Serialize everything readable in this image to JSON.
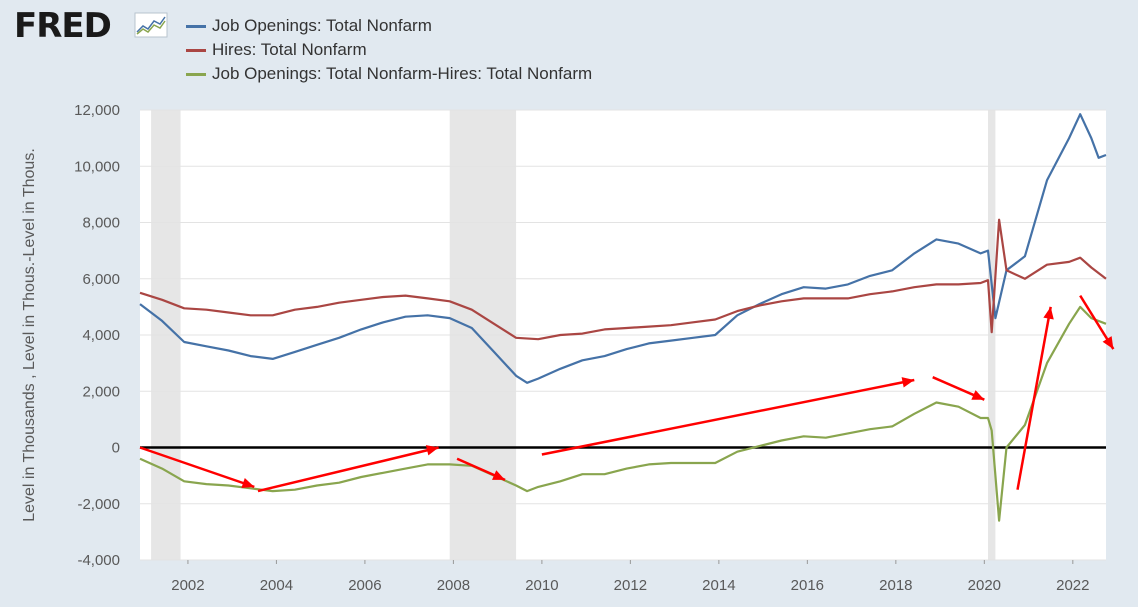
{
  "logo": {
    "text": "FRED",
    "icon": "fred-chart-icon"
  },
  "colors": {
    "background": "#e1e9f0",
    "plot_background": "#ffffff",
    "recession_shade": "#e6e6e6",
    "zero_line": "#000000",
    "annotation_arrows": "#ff0000"
  },
  "chart_data": {
    "type": "line",
    "title": "",
    "ylabel": "Level in Thousands , Level in Thous.-Level in Thous.",
    "xlabel": "",
    "x_ticks": [
      "2002",
      "2004",
      "2006",
      "2008",
      "2010",
      "2012",
      "2014",
      "2016",
      "2018",
      "2020",
      "2022"
    ],
    "y_ticks": [
      "12,000",
      "10,000",
      "8,000",
      "6,000",
      "4,000",
      "2,000",
      "0",
      "-2,000",
      "-4,000"
    ],
    "ylim": [
      -4000,
      12000
    ],
    "xlim": [
      "2000-12",
      "2022-10"
    ],
    "grid": true,
    "legend_position": "top-left",
    "recessions": [
      {
        "start": "2001-03",
        "end": "2001-11"
      },
      {
        "start": "2007-12",
        "end": "2009-06"
      },
      {
        "start": "2020-02",
        "end": "2020-04"
      }
    ],
    "series": [
      {
        "name": "Job Openings: Total Nonfarm",
        "color": "#4572a7",
        "points": [
          [
            "2000-12",
            5100
          ],
          [
            "2001-06",
            4500
          ],
          [
            "2001-12",
            3750
          ],
          [
            "2002-06",
            3600
          ],
          [
            "2002-12",
            3450
          ],
          [
            "2003-06",
            3250
          ],
          [
            "2003-12",
            3150
          ],
          [
            "2004-06",
            3400
          ],
          [
            "2004-12",
            3650
          ],
          [
            "2005-06",
            3900
          ],
          [
            "2005-12",
            4200
          ],
          [
            "2006-06",
            4450
          ],
          [
            "2006-12",
            4650
          ],
          [
            "2007-06",
            4700
          ],
          [
            "2007-12",
            4600
          ],
          [
            "2008-06",
            4250
          ],
          [
            "2008-12",
            3400
          ],
          [
            "2009-06",
            2550
          ],
          [
            "2009-09",
            2300
          ],
          [
            "2009-12",
            2450
          ],
          [
            "2010-06",
            2800
          ],
          [
            "2010-12",
            3100
          ],
          [
            "2011-06",
            3250
          ],
          [
            "2011-12",
            3500
          ],
          [
            "2012-06",
            3700
          ],
          [
            "2012-12",
            3800
          ],
          [
            "2013-06",
            3900
          ],
          [
            "2013-12",
            4000
          ],
          [
            "2014-06",
            4700
          ],
          [
            "2014-12",
            5100
          ],
          [
            "2015-06",
            5450
          ],
          [
            "2015-12",
            5700
          ],
          [
            "2016-06",
            5650
          ],
          [
            "2016-12",
            5800
          ],
          [
            "2017-06",
            6100
          ],
          [
            "2017-12",
            6300
          ],
          [
            "2018-06",
            6900
          ],
          [
            "2018-12",
            7400
          ],
          [
            "2019-06",
            7250
          ],
          [
            "2019-12",
            6900
          ],
          [
            "2020-02",
            7000
          ],
          [
            "2020-04",
            4600
          ],
          [
            "2020-07",
            6300
          ],
          [
            "2020-12",
            6800
          ],
          [
            "2021-06",
            9500
          ],
          [
            "2021-12",
            11000
          ],
          [
            "2022-03",
            11850
          ],
          [
            "2022-06",
            11000
          ],
          [
            "2022-08",
            10300
          ],
          [
            "2022-10",
            10400
          ]
        ]
      },
      {
        "name": "Hires: Total Nonfarm",
        "color": "#aa4643",
        "points": [
          [
            "2000-12",
            5500
          ],
          [
            "2001-06",
            5250
          ],
          [
            "2001-12",
            4950
          ],
          [
            "2002-06",
            4900
          ],
          [
            "2002-12",
            4800
          ],
          [
            "2003-06",
            4700
          ],
          [
            "2003-12",
            4700
          ],
          [
            "2004-06",
            4900
          ],
          [
            "2004-12",
            5000
          ],
          [
            "2005-06",
            5150
          ],
          [
            "2005-12",
            5250
          ],
          [
            "2006-06",
            5350
          ],
          [
            "2006-12",
            5400
          ],
          [
            "2007-06",
            5300
          ],
          [
            "2007-12",
            5200
          ],
          [
            "2008-06",
            4900
          ],
          [
            "2008-12",
            4400
          ],
          [
            "2009-06",
            3900
          ],
          [
            "2009-12",
            3850
          ],
          [
            "2010-06",
            4000
          ],
          [
            "2010-12",
            4050
          ],
          [
            "2011-06",
            4200
          ],
          [
            "2011-12",
            4250
          ],
          [
            "2012-06",
            4300
          ],
          [
            "2012-12",
            4350
          ],
          [
            "2013-06",
            4450
          ],
          [
            "2013-12",
            4550
          ],
          [
            "2014-06",
            4850
          ],
          [
            "2014-12",
            5050
          ],
          [
            "2015-06",
            5200
          ],
          [
            "2015-12",
            5300
          ],
          [
            "2016-06",
            5300
          ],
          [
            "2016-12",
            5300
          ],
          [
            "2017-06",
            5450
          ],
          [
            "2017-12",
            5550
          ],
          [
            "2018-06",
            5700
          ],
          [
            "2018-12",
            5800
          ],
          [
            "2019-06",
            5800
          ],
          [
            "2019-12",
            5850
          ],
          [
            "2020-02",
            5950
          ],
          [
            "2020-03",
            4100
          ],
          [
            "2020-05",
            8100
          ],
          [
            "2020-07",
            6300
          ],
          [
            "2020-12",
            6000
          ],
          [
            "2021-06",
            6500
          ],
          [
            "2021-12",
            6600
          ],
          [
            "2022-03",
            6750
          ],
          [
            "2022-06",
            6400
          ],
          [
            "2022-10",
            6000
          ]
        ]
      },
      {
        "name": "Job Openings: Total Nonfarm-Hires: Total Nonfarm",
        "color": "#89a54e",
        "points": [
          [
            "2000-12",
            -400
          ],
          [
            "2001-06",
            -750
          ],
          [
            "2001-12",
            -1200
          ],
          [
            "2002-06",
            -1300
          ],
          [
            "2002-12",
            -1350
          ],
          [
            "2003-06",
            -1450
          ],
          [
            "2003-12",
            -1550
          ],
          [
            "2004-06",
            -1500
          ],
          [
            "2004-12",
            -1350
          ],
          [
            "2005-06",
            -1250
          ],
          [
            "2005-12",
            -1050
          ],
          [
            "2006-06",
            -900
          ],
          [
            "2006-12",
            -750
          ],
          [
            "2007-06",
            -600
          ],
          [
            "2007-12",
            -600
          ],
          [
            "2008-06",
            -650
          ],
          [
            "2008-12",
            -1000
          ],
          [
            "2009-06",
            -1350
          ],
          [
            "2009-09",
            -1550
          ],
          [
            "2009-12",
            -1400
          ],
          [
            "2010-06",
            -1200
          ],
          [
            "2010-12",
            -950
          ],
          [
            "2011-06",
            -950
          ],
          [
            "2011-12",
            -750
          ],
          [
            "2012-06",
            -600
          ],
          [
            "2012-12",
            -550
          ],
          [
            "2013-06",
            -550
          ],
          [
            "2013-12",
            -550
          ],
          [
            "2014-06",
            -150
          ],
          [
            "2014-12",
            50
          ],
          [
            "2015-06",
            250
          ],
          [
            "2015-12",
            400
          ],
          [
            "2016-06",
            350
          ],
          [
            "2016-12",
            500
          ],
          [
            "2017-06",
            650
          ],
          [
            "2017-12",
            750
          ],
          [
            "2018-06",
            1200
          ],
          [
            "2018-12",
            1600
          ],
          [
            "2019-06",
            1450
          ],
          [
            "2019-12",
            1050
          ],
          [
            "2020-02",
            1050
          ],
          [
            "2020-03",
            600
          ],
          [
            "2020-05",
            -2600
          ],
          [
            "2020-07",
            0
          ],
          [
            "2020-12",
            800
          ],
          [
            "2021-06",
            3000
          ],
          [
            "2021-12",
            4400
          ],
          [
            "2022-03",
            5000
          ],
          [
            "2022-06",
            4600
          ],
          [
            "2022-10",
            4400
          ]
        ]
      }
    ],
    "annotations": [
      {
        "type": "arrow",
        "color": "#ff0000",
        "from": [
          "2000-12",
          0
        ],
        "to": [
          "2003-07",
          -1400
        ]
      },
      {
        "type": "arrow",
        "color": "#ff0000",
        "from": [
          "2003-08",
          -1550
        ],
        "to": [
          "2007-09",
          0
        ]
      },
      {
        "type": "arrow",
        "color": "#ff0000",
        "from": [
          "2008-02",
          -400
        ],
        "to": [
          "2009-03",
          -1150
        ]
      },
      {
        "type": "arrow",
        "color": "#ff0000",
        "from": [
          "2010-01",
          -250
        ],
        "to": [
          "2018-06",
          2400
        ]
      },
      {
        "type": "arrow",
        "color": "#ff0000",
        "from": [
          "2018-11",
          2500
        ],
        "to": [
          "2020-01",
          1700
        ]
      },
      {
        "type": "arrow",
        "color": "#ff0000",
        "from": [
          "2020-10",
          -1500
        ],
        "to": [
          "2021-07",
          5000
        ]
      },
      {
        "type": "arrow",
        "color": "#ff0000",
        "from": [
          "2022-03",
          5400
        ],
        "to": [
          "2022-12",
          3500
        ]
      }
    ]
  }
}
